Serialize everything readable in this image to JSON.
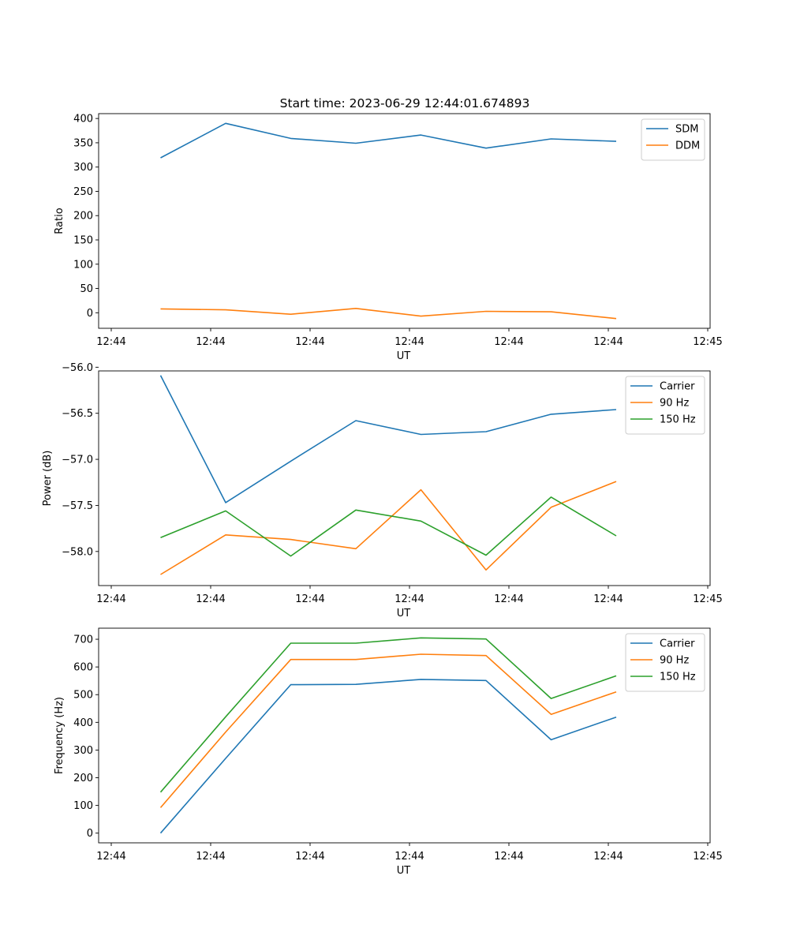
{
  "title": "Start time: 2023-06-29 12:44:01.674893",
  "chart_data": [
    {
      "type": "line",
      "xlabel": "UT",
      "ylabel": "Ratio",
      "x_tick_labels": [
        "12:44",
        "12:44",
        "12:44",
        "12:44",
        "12:44",
        "12:44",
        "12:44",
        "12:45"
      ],
      "y_ticks": [
        0,
        50,
        100,
        150,
        200,
        250,
        300,
        350,
        400
      ],
      "ylim": [
        -32,
        410
      ],
      "legend": "top-right",
      "series": [
        {
          "name": "SDM",
          "color": "#1f77b4",
          "values": [
            319,
            390,
            359,
            349,
            366,
            339,
            358,
            353
          ]
        },
        {
          "name": "DDM",
          "color": "#ff7f0e",
          "values": [
            8,
            6,
            -3,
            9,
            -7,
            3,
            2,
            -12
          ]
        }
      ]
    },
    {
      "type": "line",
      "xlabel": "UT",
      "ylabel": "Power (dB)",
      "x_tick_labels": [
        "12:44",
        "12:44",
        "12:44",
        "12:44",
        "12:44",
        "12:44",
        "12:44",
        "12:45"
      ],
      "y_ticks": [
        -58.0,
        -57.5,
        -57.0,
        -56.5,
        -56.0
      ],
      "y_tick_labels": [
        "−58.0",
        "−57.5",
        "−57.0",
        "−56.5",
        "−56.0"
      ],
      "ylim": [
        -58.37,
        -56.04
      ],
      "legend": "top-right",
      "series": [
        {
          "name": "Carrier",
          "color": "#1f77b4",
          "values": [
            -56.09,
            -57.47,
            -57.02,
            -56.58,
            -56.73,
            -56.7,
            -56.51,
            -56.46
          ]
        },
        {
          "name": "90 Hz",
          "color": "#ff7f0e",
          "values": [
            -58.25,
            -57.82,
            -57.87,
            -57.97,
            -57.33,
            -58.2,
            -57.52,
            -57.24
          ]
        },
        {
          "name": "150 Hz",
          "color": "#2ca02c",
          "values": [
            -57.85,
            -57.56,
            -58.05,
            -57.55,
            -57.67,
            -58.04,
            -57.41,
            -57.83
          ]
        }
      ]
    },
    {
      "type": "line",
      "xlabel": "UT",
      "ylabel": "Frequency (Hz)",
      "x_tick_labels": [
        "12:44",
        "12:44",
        "12:44",
        "12:44",
        "12:44",
        "12:44",
        "12:44",
        "12:45"
      ],
      "y_ticks": [
        0,
        100,
        200,
        300,
        400,
        500,
        600,
        700
      ],
      "ylim": [
        -35,
        740
      ],
      "legend": "top-right",
      "series": [
        {
          "name": "Carrier",
          "color": "#1f77b4",
          "values": [
            0,
            270,
            536,
            537,
            555,
            551,
            337,
            419
          ]
        },
        {
          "name": "90 Hz",
          "color": "#ff7f0e",
          "values": [
            92,
            365,
            627,
            627,
            646,
            641,
            429,
            510
          ]
        },
        {
          "name": "150 Hz",
          "color": "#2ca02c",
          "values": [
            148,
            420,
            686,
            686,
            705,
            701,
            486,
            568
          ]
        }
      ]
    }
  ]
}
